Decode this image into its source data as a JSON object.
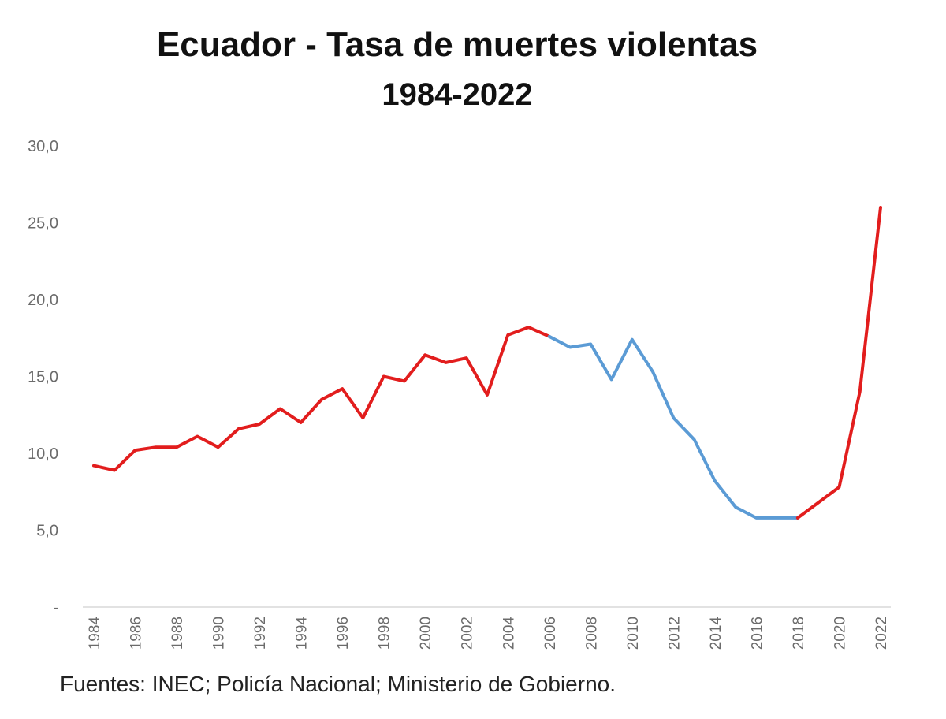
{
  "chart_data": {
    "type": "line",
    "title": "Ecuador - Tasa de muertes violentas",
    "subtitle": "1984-2022",
    "xlabel": "",
    "ylabel": "",
    "ylim": [
      0,
      30
    ],
    "ytick_values": [
      0,
      5,
      10,
      15,
      20,
      25,
      30
    ],
    "ytick_labels": [
      "-",
      "5,0",
      "10,0",
      "15,0",
      "20,0",
      "25,0",
      "30,0"
    ],
    "xtick_labels": [
      "1984",
      "1986",
      "1988",
      "1990",
      "1992",
      "1994",
      "1996",
      "1998",
      "2000",
      "2002",
      "2004",
      "2006",
      "2008",
      "2010",
      "2012",
      "2014",
      "2016",
      "2018",
      "2020",
      "2022"
    ],
    "x": [
      1984,
      1985,
      1986,
      1987,
      1988,
      1989,
      1990,
      1991,
      1992,
      1993,
      1994,
      1995,
      1996,
      1997,
      1998,
      1999,
      2000,
      2001,
      2002,
      2003,
      2004,
      2005,
      2006,
      2007,
      2008,
      2009,
      2010,
      2011,
      2012,
      2013,
      2014,
      2015,
      2016,
      2017,
      2018,
      2019,
      2020,
      2021,
      2022
    ],
    "values": [
      9.2,
      8.9,
      10.2,
      10.4,
      10.4,
      11.1,
      10.4,
      11.6,
      11.9,
      12.9,
      12.0,
      13.5,
      14.2,
      12.3,
      15.0,
      14.7,
      16.4,
      15.9,
      16.2,
      13.8,
      17.7,
      18.2,
      17.6,
      16.9,
      17.1,
      14.8,
      17.4,
      15.3,
      12.3,
      10.9,
      8.2,
      6.5,
      5.8,
      5.8,
      5.8,
      6.8,
      7.8,
      14.0,
      26.0
    ],
    "series": [
      {
        "name": "1984-2006",
        "color": "#e21d1d",
        "start": 1984,
        "end": 2006
      },
      {
        "name": "2006-2018",
        "color": "#5b9bd5",
        "start": 2006,
        "end": 2018
      },
      {
        "name": "2018-2022",
        "color": "#e21d1d",
        "start": 2018,
        "end": 2022
      }
    ],
    "grid": false,
    "source": "Fuentes:  INEC; Policía Nacional; Ministerio de Gobierno."
  }
}
